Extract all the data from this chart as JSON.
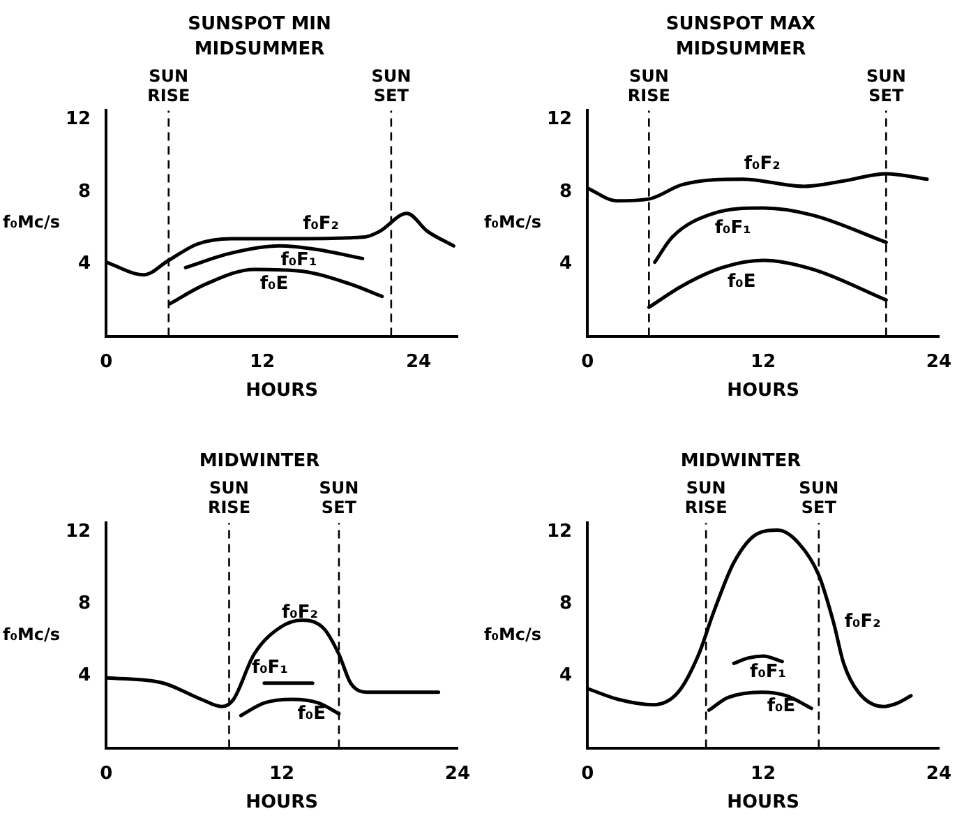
{
  "chart_data": [
    {
      "type": "line",
      "title": "SUNSPOT MIN",
      "subtitle": "MIDSUMMER",
      "xlabel": "HOURS",
      "ylabel": "f₀Mc/s",
      "xlim": [
        0,
        27
      ],
      "xticks": [
        0,
        12,
        24
      ],
      "ylim": [
        0,
        12.5
      ],
      "yticks": [
        4,
        8,
        12
      ],
      "grid": false,
      "legend": false,
      "marker": "none",
      "line_style": "solid",
      "ref_lines": [
        {
          "axis": "x",
          "value": 4.8,
          "label": "SUN RISE",
          "line_style": "dashed"
        },
        {
          "axis": "x",
          "value": 21.9,
          "label": "SUN SET",
          "line_style": "dashed"
        }
      ],
      "series": [
        {
          "name": "f₀F₂",
          "color": "#000000",
          "x": [
            0,
            2.9,
            4.8,
            7,
            9.6,
            15,
            19.9,
            21,
            23.1,
            24.7,
            26.7
          ],
          "values": [
            4.1,
            3.4,
            4.2,
            5.1,
            5.4,
            5.4,
            5.5,
            5.8,
            6.8,
            5.8,
            5.0
          ]
        },
        {
          "name": "f₀F₁",
          "color": "#000000",
          "x": [
            6.1,
            9.6,
            13.3,
            16.2,
            19.7
          ],
          "values": [
            3.8,
            4.6,
            5.0,
            4.8,
            4.3
          ]
        },
        {
          "name": "f₀E",
          "color": "#000000",
          "x": [
            4.9,
            7.7,
            11.4,
            15,
            18.7,
            21.2
          ],
          "values": [
            1.8,
            2.9,
            3.7,
            3.6,
            2.9,
            2.2
          ]
        }
      ]
    },
    {
      "type": "line",
      "title": "SUNSPOT MAX",
      "subtitle": "MIDSUMMER",
      "xlabel": "HOURS",
      "ylabel": "f₀Mc/s",
      "xlim": [
        0,
        24
      ],
      "xticks": [
        0,
        12,
        24
      ],
      "ylim": [
        0,
        12.5
      ],
      "yticks": [
        4,
        8,
        12
      ],
      "grid": false,
      "legend": false,
      "marker": "none",
      "line_style": "solid",
      "ref_lines": [
        {
          "axis": "x",
          "value": 4.2,
          "label": "SUN RISE",
          "line_style": "dashed"
        },
        {
          "axis": "x",
          "value": 20.4,
          "label": "SUN SET",
          "line_style": "dashed"
        }
      ],
      "series": [
        {
          "name": "f₀F₂",
          "color": "#000000",
          "x": [
            0,
            2,
            4.2,
            6.5,
            10.6,
            14.8,
            17.5,
            20.4,
            23.2
          ],
          "values": [
            8.2,
            7.5,
            7.6,
            8.4,
            8.7,
            8.3,
            8.6,
            9.0,
            8.7
          ]
        },
        {
          "name": "f₀F₁",
          "color": "#000000",
          "x": [
            4.6,
            5.8,
            8.6,
            12,
            15.4,
            20.4
          ],
          "values": [
            4.1,
            5.5,
            6.8,
            7.1,
            6.7,
            5.2
          ]
        },
        {
          "name": "f₀E",
          "color": "#000000",
          "x": [
            4.2,
            6.5,
            9.2,
            12,
            15.4,
            20.4
          ],
          "values": [
            1.6,
            2.8,
            3.8,
            4.2,
            3.7,
            2.0
          ]
        }
      ]
    },
    {
      "type": "line",
      "title": "MIDWINTER",
      "xlabel": "HOURS",
      "ylabel": "f₀Mc/s",
      "xlim": [
        0,
        24
      ],
      "xticks": [
        0,
        12,
        24
      ],
      "ylim": [
        0,
        12.5
      ],
      "yticks": [
        4,
        8,
        12
      ],
      "grid": false,
      "legend": false,
      "marker": "none",
      "line_style": "solid",
      "ref_lines": [
        {
          "axis": "x",
          "value": 8.4,
          "label": "SUN RISE",
          "line_style": "dashed"
        },
        {
          "axis": "x",
          "value": 15.9,
          "label": "SUN SET",
          "line_style": "dashed"
        }
      ],
      "series": [
        {
          "name": "f₀F₂",
          "color": "#000000",
          "x": [
            0,
            3.9,
            6.5,
            7.9,
            8.7,
            10.1,
            11.9,
            13.4,
            14.9,
            15.9,
            16.7,
            17.8,
            20.3,
            22.7
          ],
          "values": [
            3.9,
            3.6,
            2.7,
            2.3,
            2.7,
            5.2,
            6.7,
            7.1,
            6.6,
            5.2,
            3.6,
            3.1,
            3.1,
            3.1
          ]
        },
        {
          "name": "f₀F₁",
          "color": "#000000",
          "x": [
            10.8,
            14.1
          ],
          "values": [
            3.6,
            3.6
          ]
        },
        {
          "name": "f₀E",
          "color": "#000000",
          "x": [
            9.2,
            10.8,
            12.7,
            14.5,
            15.9
          ],
          "values": [
            1.8,
            2.5,
            2.7,
            2.5,
            1.9
          ]
        }
      ]
    },
    {
      "type": "line",
      "title": "MIDWINTER",
      "xlabel": "HOURS",
      "ylabel": "f₀Mc/s",
      "xlim": [
        0,
        24
      ],
      "xticks": [
        0,
        12,
        24
      ],
      "ylim": [
        0,
        12.5
      ],
      "yticks": [
        4,
        8,
        12
      ],
      "grid": false,
      "legend": false,
      "marker": "none",
      "line_style": "solid",
      "ref_lines": [
        {
          "axis": "x",
          "value": 8.1,
          "label": "SUN RISE",
          "line_style": "dashed"
        },
        {
          "axis": "x",
          "value": 15.8,
          "label": "SUN SET",
          "line_style": "dashed"
        }
      ],
      "series": [
        {
          "name": "f₀F₂",
          "color": "#000000",
          "x": [
            0,
            2.1,
            4.5,
            6.2,
            7.6,
            8.6,
            10,
            11.6,
            13,
            14.4,
            15.8,
            16.8,
            17.5,
            18.5,
            20.2,
            21.2,
            22.1
          ],
          "values": [
            3.3,
            2.7,
            2.4,
            3.1,
            5.2,
            7.5,
            10.3,
            11.9,
            12.1,
            11.4,
            9.6,
            7.0,
            4.7,
            3.1,
            2.3,
            2.5,
            2.9
          ]
        },
        {
          "name": "f₀F₁",
          "color": "#000000",
          "x": [
            10,
            11,
            12,
            13.3
          ],
          "values": [
            4.7,
            5.0,
            5.1,
            4.8
          ]
        },
        {
          "name": "f₀E",
          "color": "#000000",
          "x": [
            8.3,
            9.6,
            11.9,
            13.6,
            15.3
          ],
          "values": [
            2.1,
            2.8,
            3.1,
            2.9,
            2.2
          ]
        }
      ]
    }
  ]
}
